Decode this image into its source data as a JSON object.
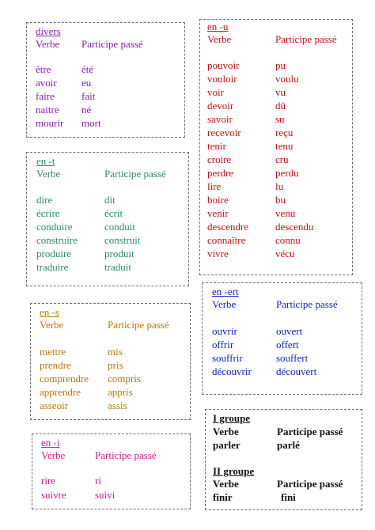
{
  "colors": {
    "divers": "#8a1ab8",
    "en_u": "#cc1111",
    "en_t": "#2a8a6a",
    "en_ert": "#1122cc",
    "en_s": "#b87a00",
    "en_i": "#d01a86",
    "groupes": "#111111"
  },
  "divers": {
    "title": "divers",
    "col_verbe": "Verbe",
    "col_pp": "Participe passé",
    "rows": [
      {
        "verbe": "être",
        "pp": "été"
      },
      {
        "verbe": "avoir",
        "pp": "eu"
      },
      {
        "verbe": "faire",
        "pp": "fait"
      },
      {
        "verbe": "naitre",
        "pp": "né"
      },
      {
        "verbe": "mourir",
        "pp": "mort"
      }
    ]
  },
  "en_u": {
    "title": "en -u",
    "col_verbe": "Verbe",
    "col_pp": "Participe passé",
    "rows": [
      {
        "verbe": "pouvoir",
        "pp": "pu"
      },
      {
        "verbe": "vouloir",
        "pp": "voulu"
      },
      {
        "verbe": "voir",
        "pp": "vu"
      },
      {
        "verbe": "devoir",
        "pp": "dû"
      },
      {
        "verbe": "savoir",
        "pp": "su"
      },
      {
        "verbe": "recevoir",
        "pp": "reçu"
      },
      {
        "verbe": "tenir",
        "pp": "tenu"
      },
      {
        "verbe": "croire",
        "pp": "cru"
      },
      {
        "verbe": "perdre",
        "pp": "perdu"
      },
      {
        "verbe": "lire",
        "pp": "lu"
      },
      {
        "verbe": "boire",
        "pp": "bu"
      },
      {
        "verbe": "venir",
        "pp": "venu"
      },
      {
        "verbe": "descendre",
        "pp": "descendu"
      },
      {
        "verbe": "connaître",
        "pp": "connu"
      },
      {
        "verbe": "vivre",
        "pp": "vécu"
      }
    ]
  },
  "en_t": {
    "title": "en -t",
    "col_verbe": "Verbe",
    "col_pp": "Participe passé",
    "rows": [
      {
        "verbe": "dire",
        "pp": "dit"
      },
      {
        "verbe": "écrire",
        "pp": "écrit"
      },
      {
        "verbe": "conduire",
        "pp": "conduit"
      },
      {
        "verbe": "construire",
        "pp": "construit"
      },
      {
        "verbe": "produire",
        "pp": "produit"
      },
      {
        "verbe": "traduire",
        "pp": "traduit"
      }
    ]
  },
  "en_ert": {
    "title": "en -ert",
    "col_verbe": "Verbe",
    "col_pp": "Participe passé",
    "rows": [
      {
        "verbe": "ouvrir",
        "pp": "ouvert"
      },
      {
        "verbe": "offrir",
        "pp": "offert"
      },
      {
        "verbe": "souffrir",
        "pp": "souffert"
      },
      {
        "verbe": "découvrir",
        "pp": "découvert"
      }
    ]
  },
  "en_s": {
    "title": "en -s",
    "col_verbe": "Verbe",
    "col_pp": "Participe passé",
    "rows": [
      {
        "verbe": "mettre",
        "pp": "mis"
      },
      {
        "verbe": "prendre",
        "pp": "pris"
      },
      {
        "verbe": "comprendre",
        "pp": "compris"
      },
      {
        "verbe": "apprendre",
        "pp": "appris"
      },
      {
        "verbe": "asseoir",
        "pp": "assis"
      }
    ]
  },
  "en_i": {
    "title": "en -i",
    "col_verbe": "Verbe",
    "col_pp": "Participe passé",
    "rows": [
      {
        "verbe": "rire",
        "pp": "ri"
      },
      {
        "verbe": "suivre",
        "pp": "suivi"
      }
    ]
  },
  "groupes": {
    "g1_title": "I groupe",
    "g1_col_verbe": "Verbe",
    "g1_col_pp": "Participe passé",
    "g1_verbe": "parler",
    "g1_pp": "parlé",
    "g2_title": "II groupe",
    "g2_col_verbe": "Verbe",
    "g2_col_pp": "Participe passé",
    "g2_verbe": "finir",
    "g2_pp": "fini"
  }
}
